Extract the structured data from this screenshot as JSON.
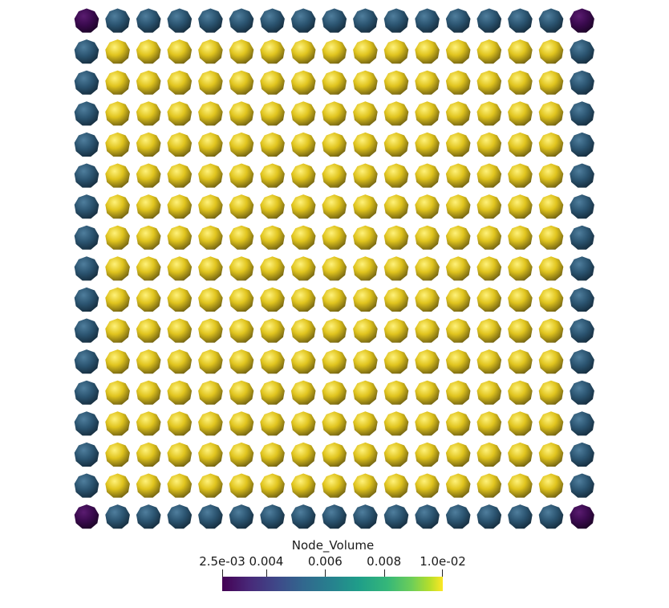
{
  "scene": {
    "grid": {
      "rows": 17,
      "cols": 17
    },
    "colors": {
      "corner": "#3a0a4e",
      "edge": "#2b5470",
      "interior": "#e0c41e"
    }
  },
  "legend": {
    "title": "Node_Volume",
    "range": [
      0.0025,
      0.01
    ],
    "colormap": "viridis",
    "ticks": [
      {
        "label": "2.5e-03",
        "value": 0.0025
      },
      {
        "label": "0.004",
        "value": 0.004
      },
      {
        "label": "0.006",
        "value": 0.006
      },
      {
        "label": "0.008",
        "value": 0.008
      },
      {
        "label": "1.0e-02",
        "value": 0.01
      }
    ]
  }
}
